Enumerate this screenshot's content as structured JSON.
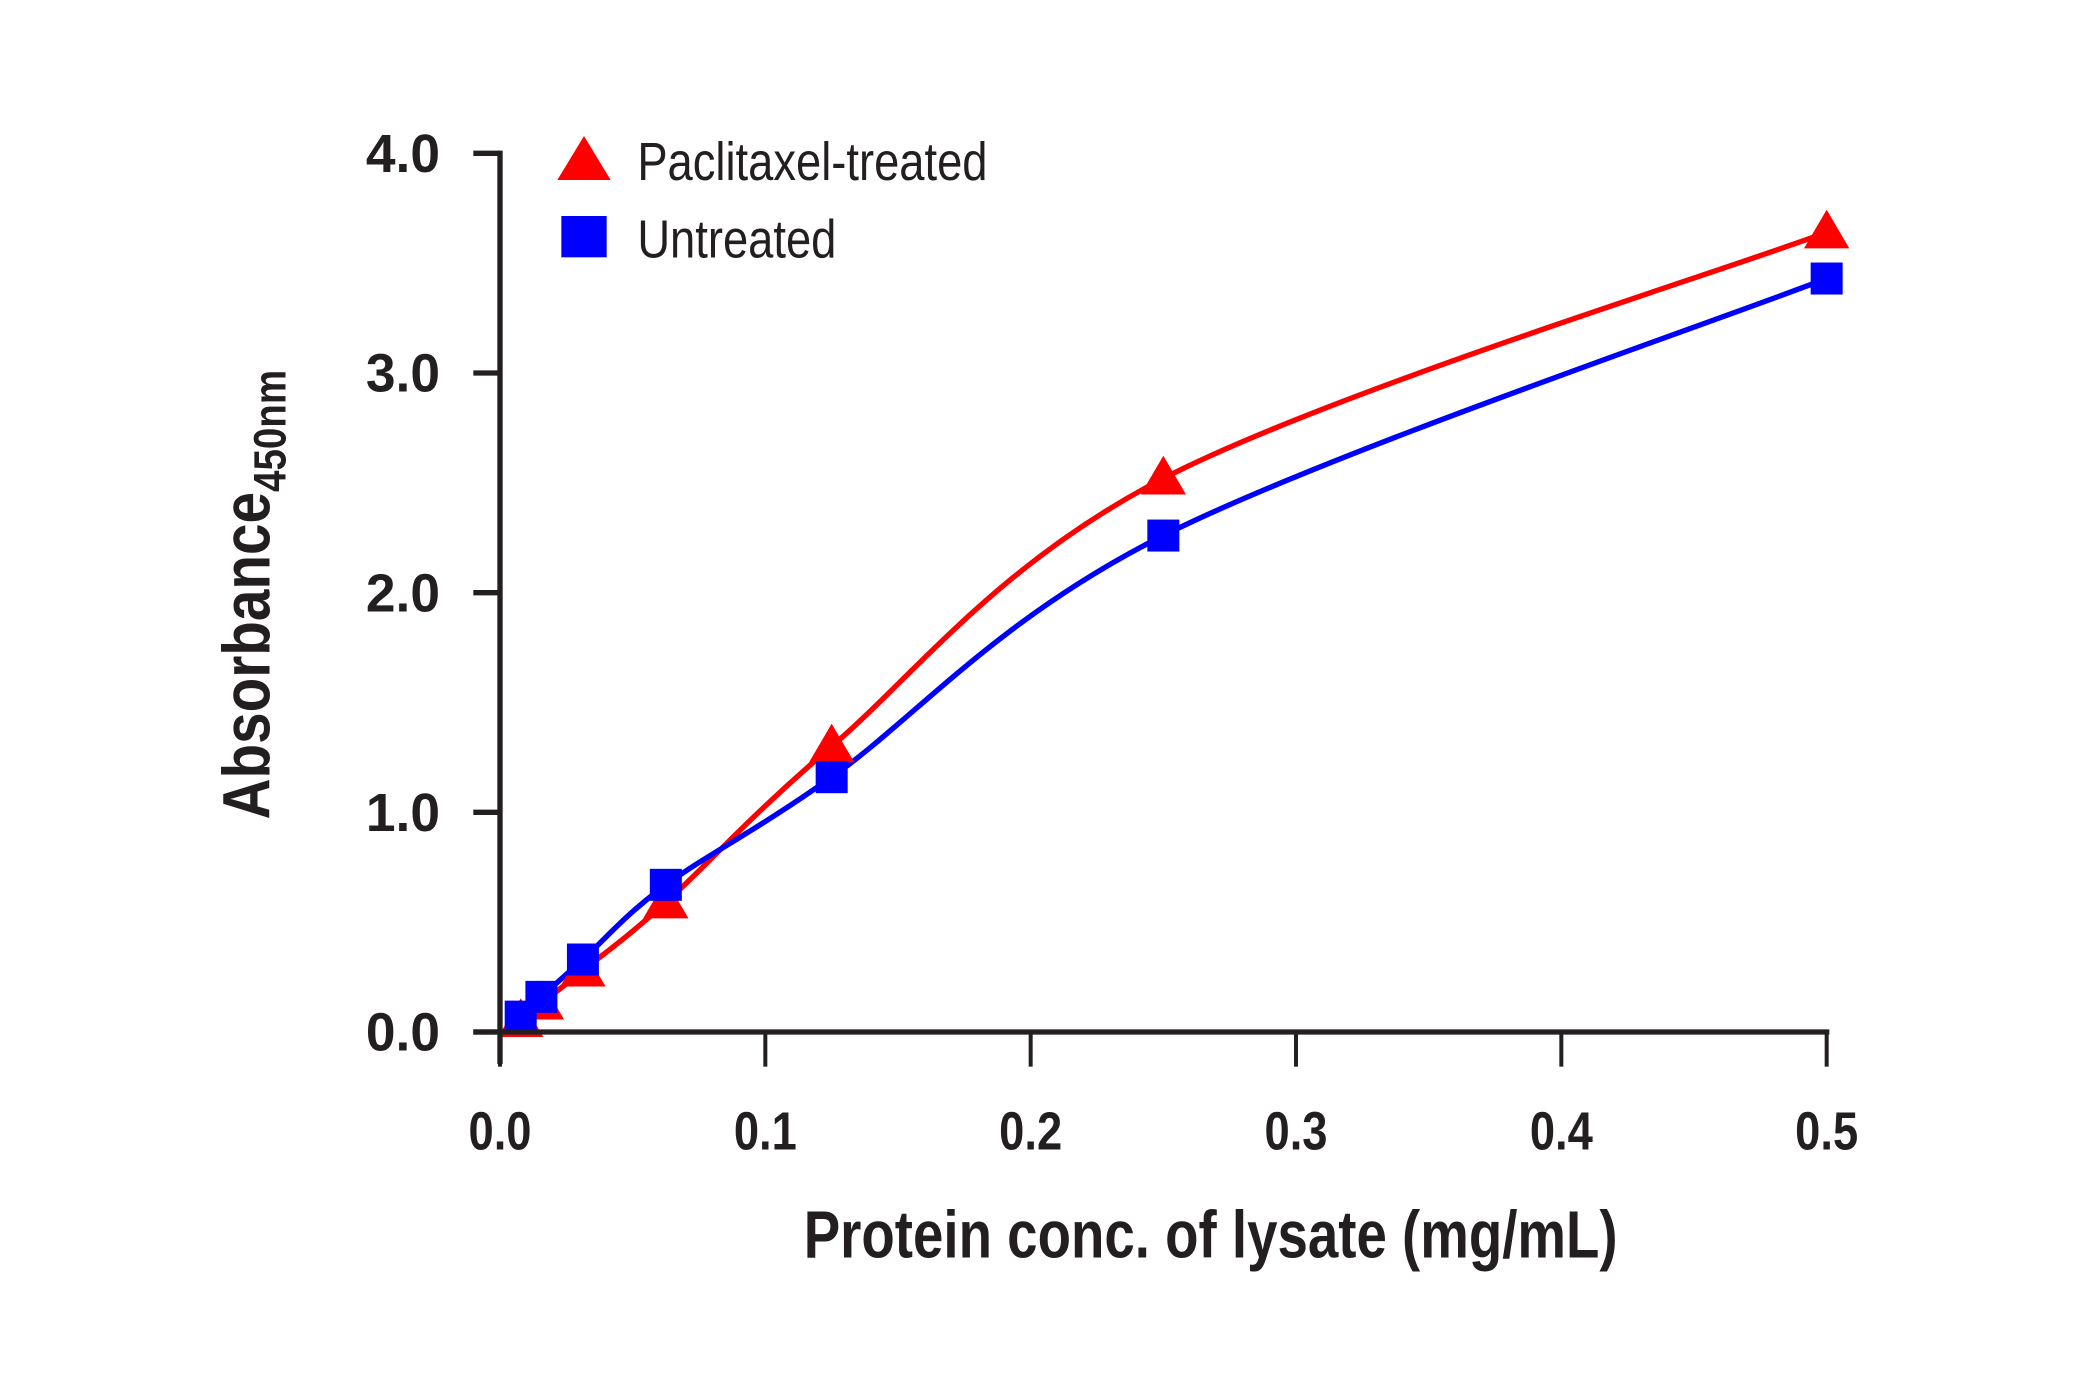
{
  "chart_data": {
    "type": "line",
    "title": "",
    "xlabel": "Protein conc. of lysate (mg/mL)",
    "ylabel": "Absorbance",
    "ylabel_subscript": "450nm",
    "xlim": [
      0,
      0.5
    ],
    "ylim": [
      0,
      4.0
    ],
    "xticks": [
      "0.0",
      "0.1",
      "0.2",
      "0.3",
      "0.4",
      "0.5"
    ],
    "yticks": [
      "0.0",
      "1.0",
      "2.0",
      "3.0",
      "4.0"
    ],
    "grid": false,
    "legend_position": "top-left",
    "x": [
      0.0078,
      0.0156,
      0.03125,
      0.0625,
      0.125,
      0.25,
      0.5
    ],
    "series": [
      {
        "name": "Paclitaxel-treated",
        "marker": "triangle",
        "color": "#ff0000",
        "values": [
          0.05,
          0.13,
          0.28,
          0.59,
          1.3,
          2.52,
          3.64
        ]
      },
      {
        "name": "Untreated",
        "marker": "square",
        "color": "#0000ff",
        "values": [
          0.07,
          0.16,
          0.33,
          0.67,
          1.16,
          2.26,
          3.43
        ]
      }
    ]
  }
}
